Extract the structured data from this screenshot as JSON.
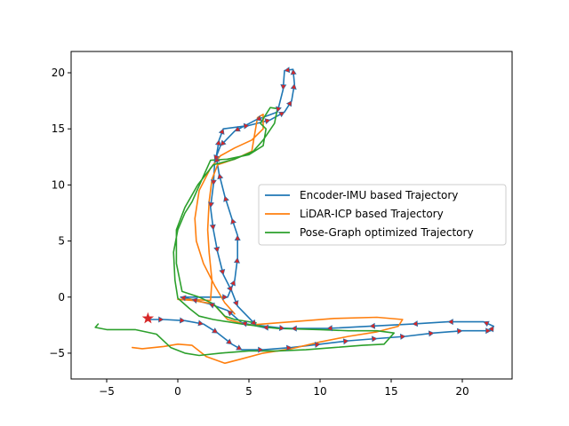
{
  "chart_data": {
    "type": "line",
    "title": "",
    "xlabel": "",
    "ylabel": "",
    "xlim": [
      -7.5,
      23.5
    ],
    "ylim": [
      -7.3,
      21.9
    ],
    "xticks": [
      -5,
      0,
      5,
      10,
      15,
      20
    ],
    "yticks": [
      -5,
      0,
      5,
      10,
      15,
      20
    ],
    "tick_labels_x": [
      "−5",
      "0",
      "5",
      "10",
      "15",
      "20"
    ],
    "tick_labels_y": [
      "−5",
      "0",
      "5",
      "10",
      "15",
      "20"
    ],
    "grid": false,
    "legend_position": "center-right",
    "series": [
      {
        "name": "Encoder-IMU based Trajectory",
        "color": "#1f77b4",
        "arrow_color": "#d62728",
        "points": [
          [
            -2.2,
            -2.0
          ],
          [
            -1.0,
            -2.0
          ],
          [
            0.5,
            -2.1
          ],
          [
            1.8,
            -2.4
          ],
          [
            2.8,
            -3.2
          ],
          [
            3.8,
            -4.2
          ],
          [
            4.5,
            -4.7
          ],
          [
            6.0,
            -4.7
          ],
          [
            8.0,
            -4.5
          ],
          [
            10.0,
            -4.2
          ],
          [
            12.0,
            -3.9
          ],
          [
            14.0,
            -3.7
          ],
          [
            16.0,
            -3.5
          ],
          [
            18.0,
            -3.2
          ],
          [
            20.0,
            -3.0
          ],
          [
            22.0,
            -3.0
          ],
          [
            22.2,
            -2.6
          ],
          [
            21.5,
            -2.2
          ],
          [
            19.0,
            -2.2
          ],
          [
            16.5,
            -2.4
          ],
          [
            13.5,
            -2.6
          ],
          [
            10.5,
            -2.8
          ],
          [
            8.0,
            -2.8
          ],
          [
            6.0,
            -2.7
          ],
          [
            4.5,
            -2.3
          ],
          [
            3.5,
            -1.2
          ],
          [
            2.2,
            -0.6
          ],
          [
            1.0,
            -0.2
          ],
          [
            0.2,
            0.0
          ],
          [
            3.5,
            0.0
          ],
          [
            4.0,
            1.5
          ],
          [
            4.2,
            3.5
          ],
          [
            4.2,
            5.5
          ],
          [
            3.8,
            7.0
          ],
          [
            3.3,
            9.0
          ],
          [
            2.9,
            11.0
          ],
          [
            2.7,
            12.5
          ],
          [
            2.9,
            14.0
          ],
          [
            3.2,
            15.0
          ],
          [
            5.0,
            15.3
          ],
          [
            6.5,
            15.8
          ],
          [
            7.5,
            16.5
          ],
          [
            8.0,
            17.5
          ],
          [
            8.2,
            19.0
          ],
          [
            8.1,
            20.3
          ],
          [
            7.5,
            20.2
          ],
          [
            7.4,
            18.5
          ],
          [
            7.0,
            16.5
          ],
          [
            5.5,
            15.8
          ],
          [
            4.0,
            14.8
          ],
          [
            3.0,
            13.5
          ],
          [
            2.6,
            12.2
          ],
          [
            2.5,
            10.0
          ],
          [
            2.3,
            8.0
          ],
          [
            2.5,
            6.0
          ],
          [
            2.8,
            4.0
          ],
          [
            3.2,
            2.0
          ],
          [
            3.8,
            0.5
          ],
          [
            4.2,
            -0.8
          ],
          [
            5.5,
            -2.5
          ],
          [
            7.5,
            -2.8
          ]
        ]
      },
      {
        "name": "LiDAR-ICP based Trajectory",
        "color": "#ff7f0e",
        "points": [
          [
            -3.2,
            -4.5
          ],
          [
            -2.5,
            -4.6
          ],
          [
            -1.0,
            -4.4
          ],
          [
            0.0,
            -4.2
          ],
          [
            1.0,
            -4.3
          ],
          [
            2.0,
            -5.3
          ],
          [
            3.3,
            -5.9
          ],
          [
            4.5,
            -5.5
          ],
          [
            6.0,
            -5.0
          ],
          [
            8.0,
            -4.6
          ],
          [
            10.0,
            -4.0
          ],
          [
            12.0,
            -3.5
          ],
          [
            14.0,
            -3.1
          ],
          [
            15.5,
            -2.6
          ],
          [
            15.8,
            -2.0
          ],
          [
            14.0,
            -1.8
          ],
          [
            11.0,
            -1.9
          ],
          [
            8.0,
            -2.2
          ],
          [
            5.0,
            -2.5
          ],
          [
            3.5,
            -2.0
          ],
          [
            2.5,
            -0.6
          ],
          [
            1.0,
            -0.3
          ],
          [
            0.0,
            -0.2
          ],
          [
            0.8,
            -0.2
          ],
          [
            2.3,
            -0.3
          ],
          [
            2.4,
            1.5
          ],
          [
            2.2,
            4.0
          ],
          [
            2.1,
            6.0
          ],
          [
            2.2,
            8.5
          ],
          [
            2.4,
            10.5
          ],
          [
            2.8,
            11.8
          ],
          [
            4.0,
            12.3
          ],
          [
            5.2,
            13.0
          ],
          [
            5.4,
            14.5
          ],
          [
            5.6,
            16.0
          ],
          [
            6.0,
            16.3
          ],
          [
            6.0,
            15.0
          ],
          [
            5.2,
            14.0
          ],
          [
            4.0,
            13.3
          ],
          [
            3.0,
            12.6
          ],
          [
            2.3,
            11.5
          ],
          [
            1.5,
            9.5
          ],
          [
            1.2,
            7.0
          ],
          [
            1.3,
            5.0
          ],
          [
            1.8,
            3.0
          ],
          [
            2.6,
            1.0
          ],
          [
            3.3,
            -0.5
          ],
          [
            4.0,
            -1.5
          ]
        ]
      },
      {
        "name": "Pose-Graph optimized Trajectory",
        "color": "#2ca02c",
        "points": [
          [
            -5.6,
            -2.4
          ],
          [
            -5.8,
            -2.7
          ],
          [
            -5.0,
            -2.9
          ],
          [
            -3.0,
            -2.9
          ],
          [
            -1.5,
            -3.3
          ],
          [
            -0.5,
            -4.5
          ],
          [
            0.5,
            -5.0
          ],
          [
            1.5,
            -5.2
          ],
          [
            3.0,
            -5.0
          ],
          [
            5.0,
            -4.8
          ],
          [
            7.0,
            -4.8
          ],
          [
            9.0,
            -4.7
          ],
          [
            11.0,
            -4.5
          ],
          [
            13.0,
            -4.3
          ],
          [
            14.5,
            -4.2
          ],
          [
            15.2,
            -3.2
          ],
          [
            14.0,
            -3.0
          ],
          [
            12.0,
            -3.0
          ],
          [
            10.0,
            -2.9
          ],
          [
            7.0,
            -2.8
          ],
          [
            4.5,
            -2.4
          ],
          [
            2.5,
            -2.0
          ],
          [
            1.5,
            -1.7
          ],
          [
            0.8,
            -1.0
          ],
          [
            0.0,
            -0.1
          ],
          [
            -0.2,
            1.5
          ],
          [
            -0.3,
            4.0
          ],
          [
            0.0,
            6.0
          ],
          [
            0.5,
            7.5
          ],
          [
            1.0,
            8.5
          ],
          [
            1.7,
            10.5
          ],
          [
            2.3,
            12.2
          ],
          [
            3.5,
            12.3
          ],
          [
            5.0,
            12.7
          ],
          [
            6.0,
            13.5
          ],
          [
            6.2,
            15.0
          ],
          [
            5.8,
            15.5
          ],
          [
            6.2,
            16.3
          ],
          [
            6.5,
            16.9
          ],
          [
            7.0,
            16.8
          ],
          [
            6.8,
            15.5
          ],
          [
            6.0,
            14.0
          ],
          [
            5.3,
            13.0
          ],
          [
            4.0,
            12.3
          ],
          [
            2.5,
            11.8
          ],
          [
            1.4,
            10.0
          ],
          [
            0.5,
            8.0
          ],
          [
            -0.1,
            6.0
          ],
          [
            -0.1,
            3.0
          ],
          [
            0.3,
            0.5
          ],
          [
            1.5,
            0.0
          ],
          [
            2.5,
            -0.6
          ],
          [
            3.3,
            -1.7
          ],
          [
            4.0,
            -2.0
          ],
          [
            5.5,
            -2.3
          ]
        ]
      }
    ],
    "markers": [
      {
        "type": "start-star",
        "color": "#d62728",
        "x": -2.1,
        "y": -1.9
      }
    ]
  }
}
